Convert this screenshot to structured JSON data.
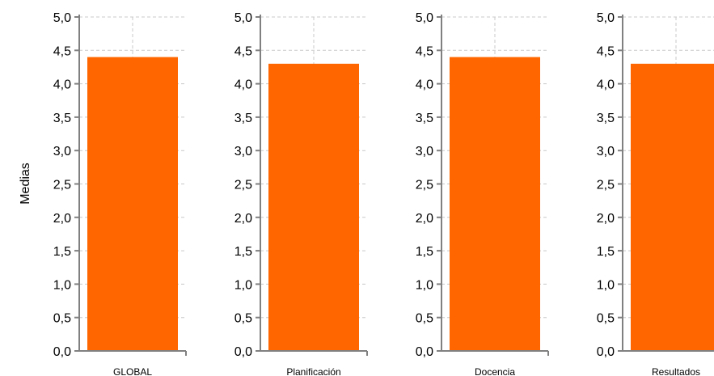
{
  "chart_data": {
    "type": "bar",
    "ylabel": "Medias",
    "ylim": [
      0,
      5
    ],
    "ytick_labels": [
      "0,0",
      "0,5",
      "1,0",
      "1,5",
      "2,0",
      "2,5",
      "3,0",
      "3,5",
      "4,0",
      "4,5",
      "5,0"
    ],
    "grid": "dashed-horizontal",
    "bar_color": "#ff6600",
    "axis_color": "#808080",
    "grid_color": "#c8c8c8",
    "panels": [
      {
        "category": "GLOBAL",
        "value": 4.4
      },
      {
        "category": "Planificación",
        "value": 4.3
      },
      {
        "category": "Docencia",
        "value": 4.4
      },
      {
        "category": "Resultados",
        "value": 4.3
      }
    ]
  }
}
